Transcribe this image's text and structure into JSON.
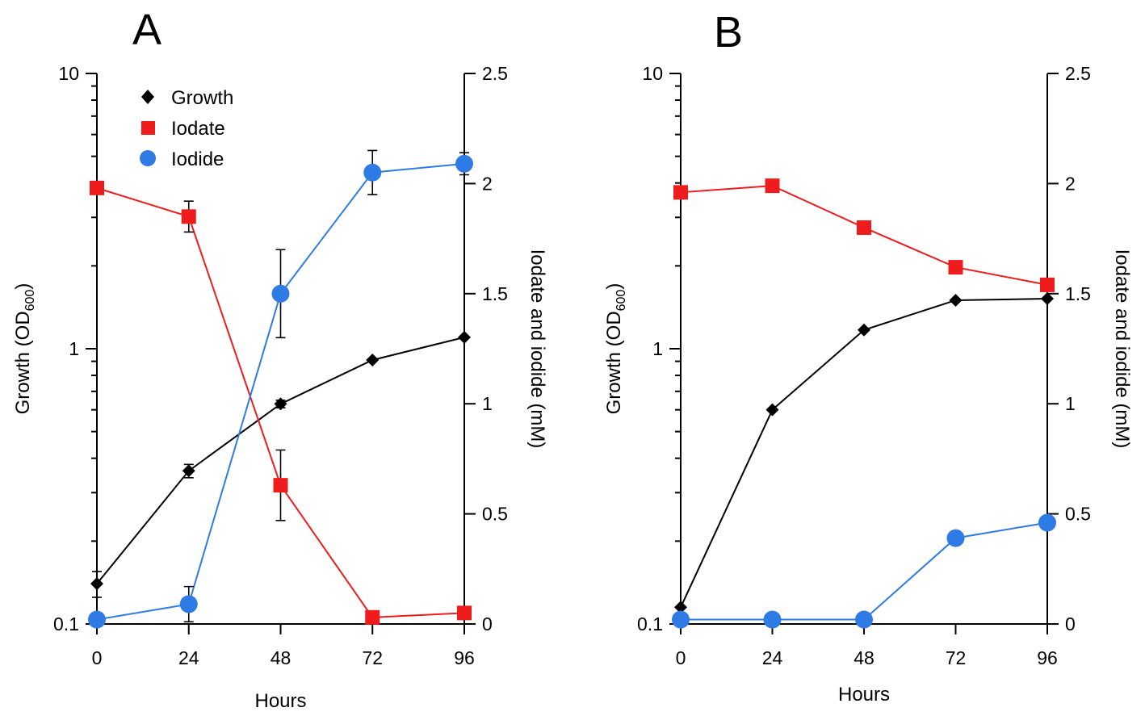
{
  "legend": [
    {
      "key": "growth",
      "label": "Growth",
      "marker": "diamond",
      "color": "#000000"
    },
    {
      "key": "iodate",
      "label": "Iodate",
      "marker": "square",
      "color": "#ee1c1c"
    },
    {
      "key": "iodide",
      "label": "Iodide",
      "marker": "circle",
      "color": "#2e7be6"
    }
  ],
  "colors": {
    "growth": "#000000",
    "iodate": "#ee1c1c",
    "iodide": "#2e7be6",
    "axis": "#000000"
  },
  "chart_data": [
    {
      "panel": "A",
      "type": "line",
      "x": [
        0,
        24,
        48,
        72,
        96
      ],
      "xticks": [
        "0",
        "24",
        "48",
        "72",
        "96"
      ],
      "xlabel": "Hours",
      "xlim": [
        0,
        96
      ],
      "ylabel_left": "Growth (OD",
      "ylabel_left_sub": "600",
      "ylabel_left_end": ")",
      "ylim_left": [
        0.1,
        10
      ],
      "yscale_left": "log",
      "yticks_left": [
        "0.1",
        "1",
        "10"
      ],
      "ylabel_right": "Iodate and iodide (mM)",
      "ylim_right": [
        0,
        2.5
      ],
      "yticks_right": [
        "0",
        "0.5",
        "1",
        "1.5",
        "2",
        "2.5"
      ],
      "series": [
        {
          "name": "Growth",
          "key": "growth",
          "axis": "left",
          "values": [
            0.14,
            0.36,
            0.63,
            0.91,
            1.1
          ],
          "err": [
            0.015,
            0.02,
            0.02,
            0,
            0
          ]
        },
        {
          "name": "Iodate",
          "key": "iodate",
          "axis": "right",
          "values": [
            1.98,
            1.85,
            0.63,
            0.03,
            0.05
          ],
          "err": [
            0,
            0.07,
            0.16,
            0,
            0
          ]
        },
        {
          "name": "Iodide",
          "key": "iodide",
          "axis": "right",
          "values": [
            0.02,
            0.09,
            1.5,
            2.05,
            2.09
          ],
          "err": [
            0,
            0.08,
            0.2,
            0.1,
            0.05
          ]
        }
      ]
    },
    {
      "panel": "B",
      "type": "line",
      "x": [
        0,
        24,
        48,
        72,
        96
      ],
      "xticks": [
        "0",
        "24",
        "48",
        "72",
        "96"
      ],
      "xlabel": "Hours",
      "xlim": [
        0,
        96
      ],
      "ylabel_left": "Growth (OD",
      "ylabel_left_sub": "600",
      "ylabel_left_end": ")",
      "ylim_left": [
        0.1,
        10
      ],
      "yscale_left": "log",
      "yticks_left": [
        "0.1",
        "1",
        "10"
      ],
      "ylabel_right": "Iodate and iodide (mM)",
      "ylim_right": [
        0,
        2.5
      ],
      "yticks_right": [
        "0",
        "0.5",
        "1",
        "1.5",
        "2",
        "2.5"
      ],
      "series": [
        {
          "name": "Growth",
          "key": "growth",
          "axis": "left",
          "values": [
            0.115,
            0.6,
            1.17,
            1.5,
            1.52
          ],
          "err": [
            0,
            0,
            0,
            0,
            0
          ]
        },
        {
          "name": "Iodate",
          "key": "iodate",
          "axis": "right",
          "values": [
            1.96,
            1.99,
            1.8,
            1.62,
            1.54
          ],
          "err": [
            0,
            0,
            0,
            0,
            0
          ]
        },
        {
          "name": "Iodide",
          "key": "iodide",
          "axis": "right",
          "values": [
            0.02,
            0.02,
            0.02,
            0.39,
            0.46
          ],
          "err": [
            0,
            0,
            0,
            0.03,
            0
          ]
        }
      ]
    }
  ]
}
